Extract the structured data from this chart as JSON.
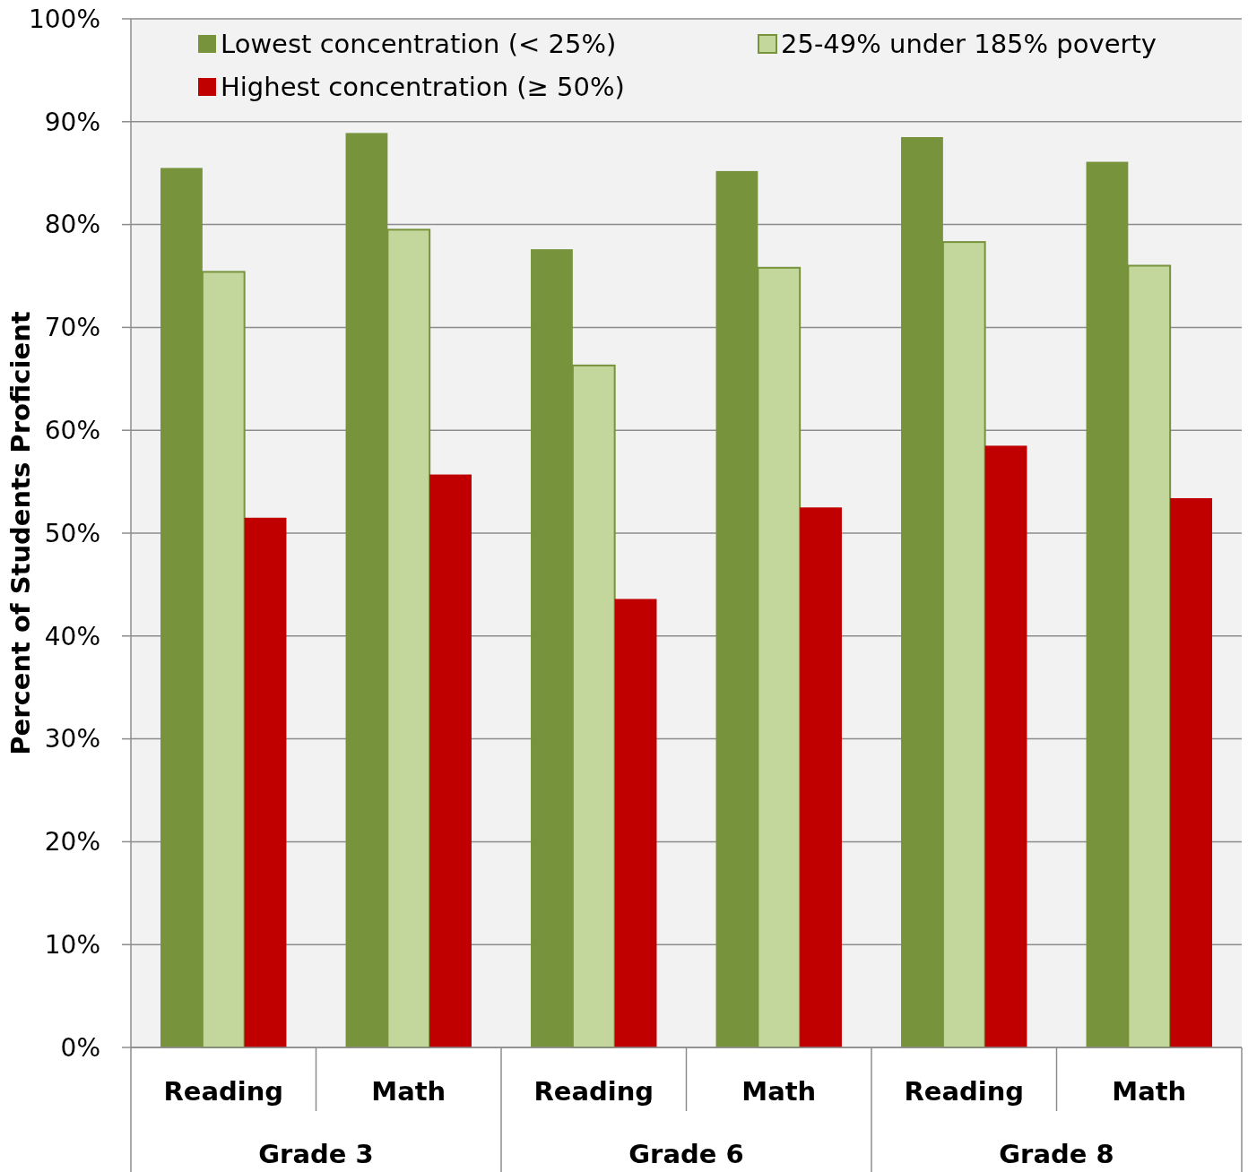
{
  "chart_data": {
    "type": "bar",
    "ylabel": "Percent of Students Proficient",
    "categories": [
      "Reading",
      "Math",
      "Reading",
      "Math",
      "Reading",
      "Math"
    ],
    "annotations": [
      "Grade 3",
      "Grade 6",
      "Grade 8"
    ],
    "series": [
      {
        "name": "Lowest concentration (< 25%)",
        "color": "#77933c",
        "values": [
          85.5,
          88.9,
          77.6,
          85.2,
          88.5,
          86.1
        ]
      },
      {
        "name": "25-49% under 185% poverty",
        "color": "#c3d69b",
        "values": [
          75.4,
          79.5,
          66.3,
          75.8,
          78.3,
          76.0
        ]
      },
      {
        "name": "Highest concentration (≥ 50%)",
        "color": "#c00000",
        "values": [
          51.5,
          55.7,
          43.6,
          52.5,
          58.5,
          53.4
        ]
      }
    ],
    "ylim": [
      0,
      100
    ],
    "yticks": [
      {
        "value": 0,
        "label": "0%"
      },
      {
        "value": 10,
        "label": "10%"
      },
      {
        "value": 20,
        "label": "20%"
      },
      {
        "value": 30,
        "label": "30%"
      },
      {
        "value": 40,
        "label": "40%"
      },
      {
        "value": 50,
        "label": "50%"
      },
      {
        "value": 60,
        "label": "60%"
      },
      {
        "value": 70,
        "label": "70%"
      },
      {
        "value": 80,
        "label": "80%"
      },
      {
        "value": 90,
        "label": "90%"
      },
      {
        "value": 100,
        "label": "100%"
      }
    ],
    "grid": "y",
    "legend": "top"
  }
}
